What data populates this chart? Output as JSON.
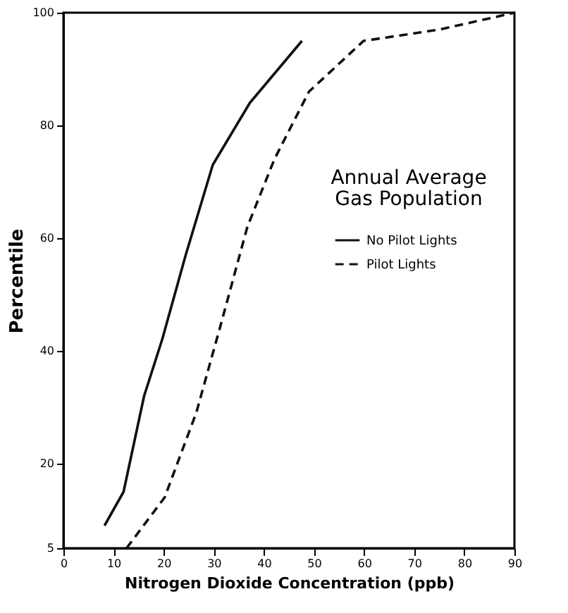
{
  "chart_data": {
    "type": "line",
    "title": [
      "Annual Average",
      "Gas Population"
    ],
    "xlabel": "Nitrogen Dioxide Concentration (ppb)",
    "ylabel": "Percentile",
    "xlim": [
      0,
      90
    ],
    "xticks": [
      0,
      10,
      20,
      30,
      40,
      50,
      60,
      70,
      80,
      90
    ],
    "ylim": [
      5,
      100
    ],
    "yticks": [
      5,
      20,
      40,
      60,
      80,
      100
    ],
    "grid": false,
    "legend": "right",
    "marker": "none",
    "series": [
      {
        "name": "No Pilot Lights",
        "color": "#111111",
        "line_style": "solid",
        "x": [
          8.2,
          12.0,
          16.1,
          19.7,
          24.4,
          29.8,
          37.2,
          47.6
        ],
        "values": [
          9,
          15,
          32,
          42,
          57,
          73,
          84,
          95
        ]
      },
      {
        "name": "Pilot Lights",
        "color": "#111111",
        "line_style": "dashed",
        "x": [
          12.6,
          20.2,
          26.5,
          31.2,
          36.7,
          42.1,
          49.0,
          59.9,
          75,
          90
        ],
        "values": [
          5,
          14,
          29,
          44,
          62,
          74,
          86,
          95,
          97,
          100
        ]
      }
    ]
  }
}
